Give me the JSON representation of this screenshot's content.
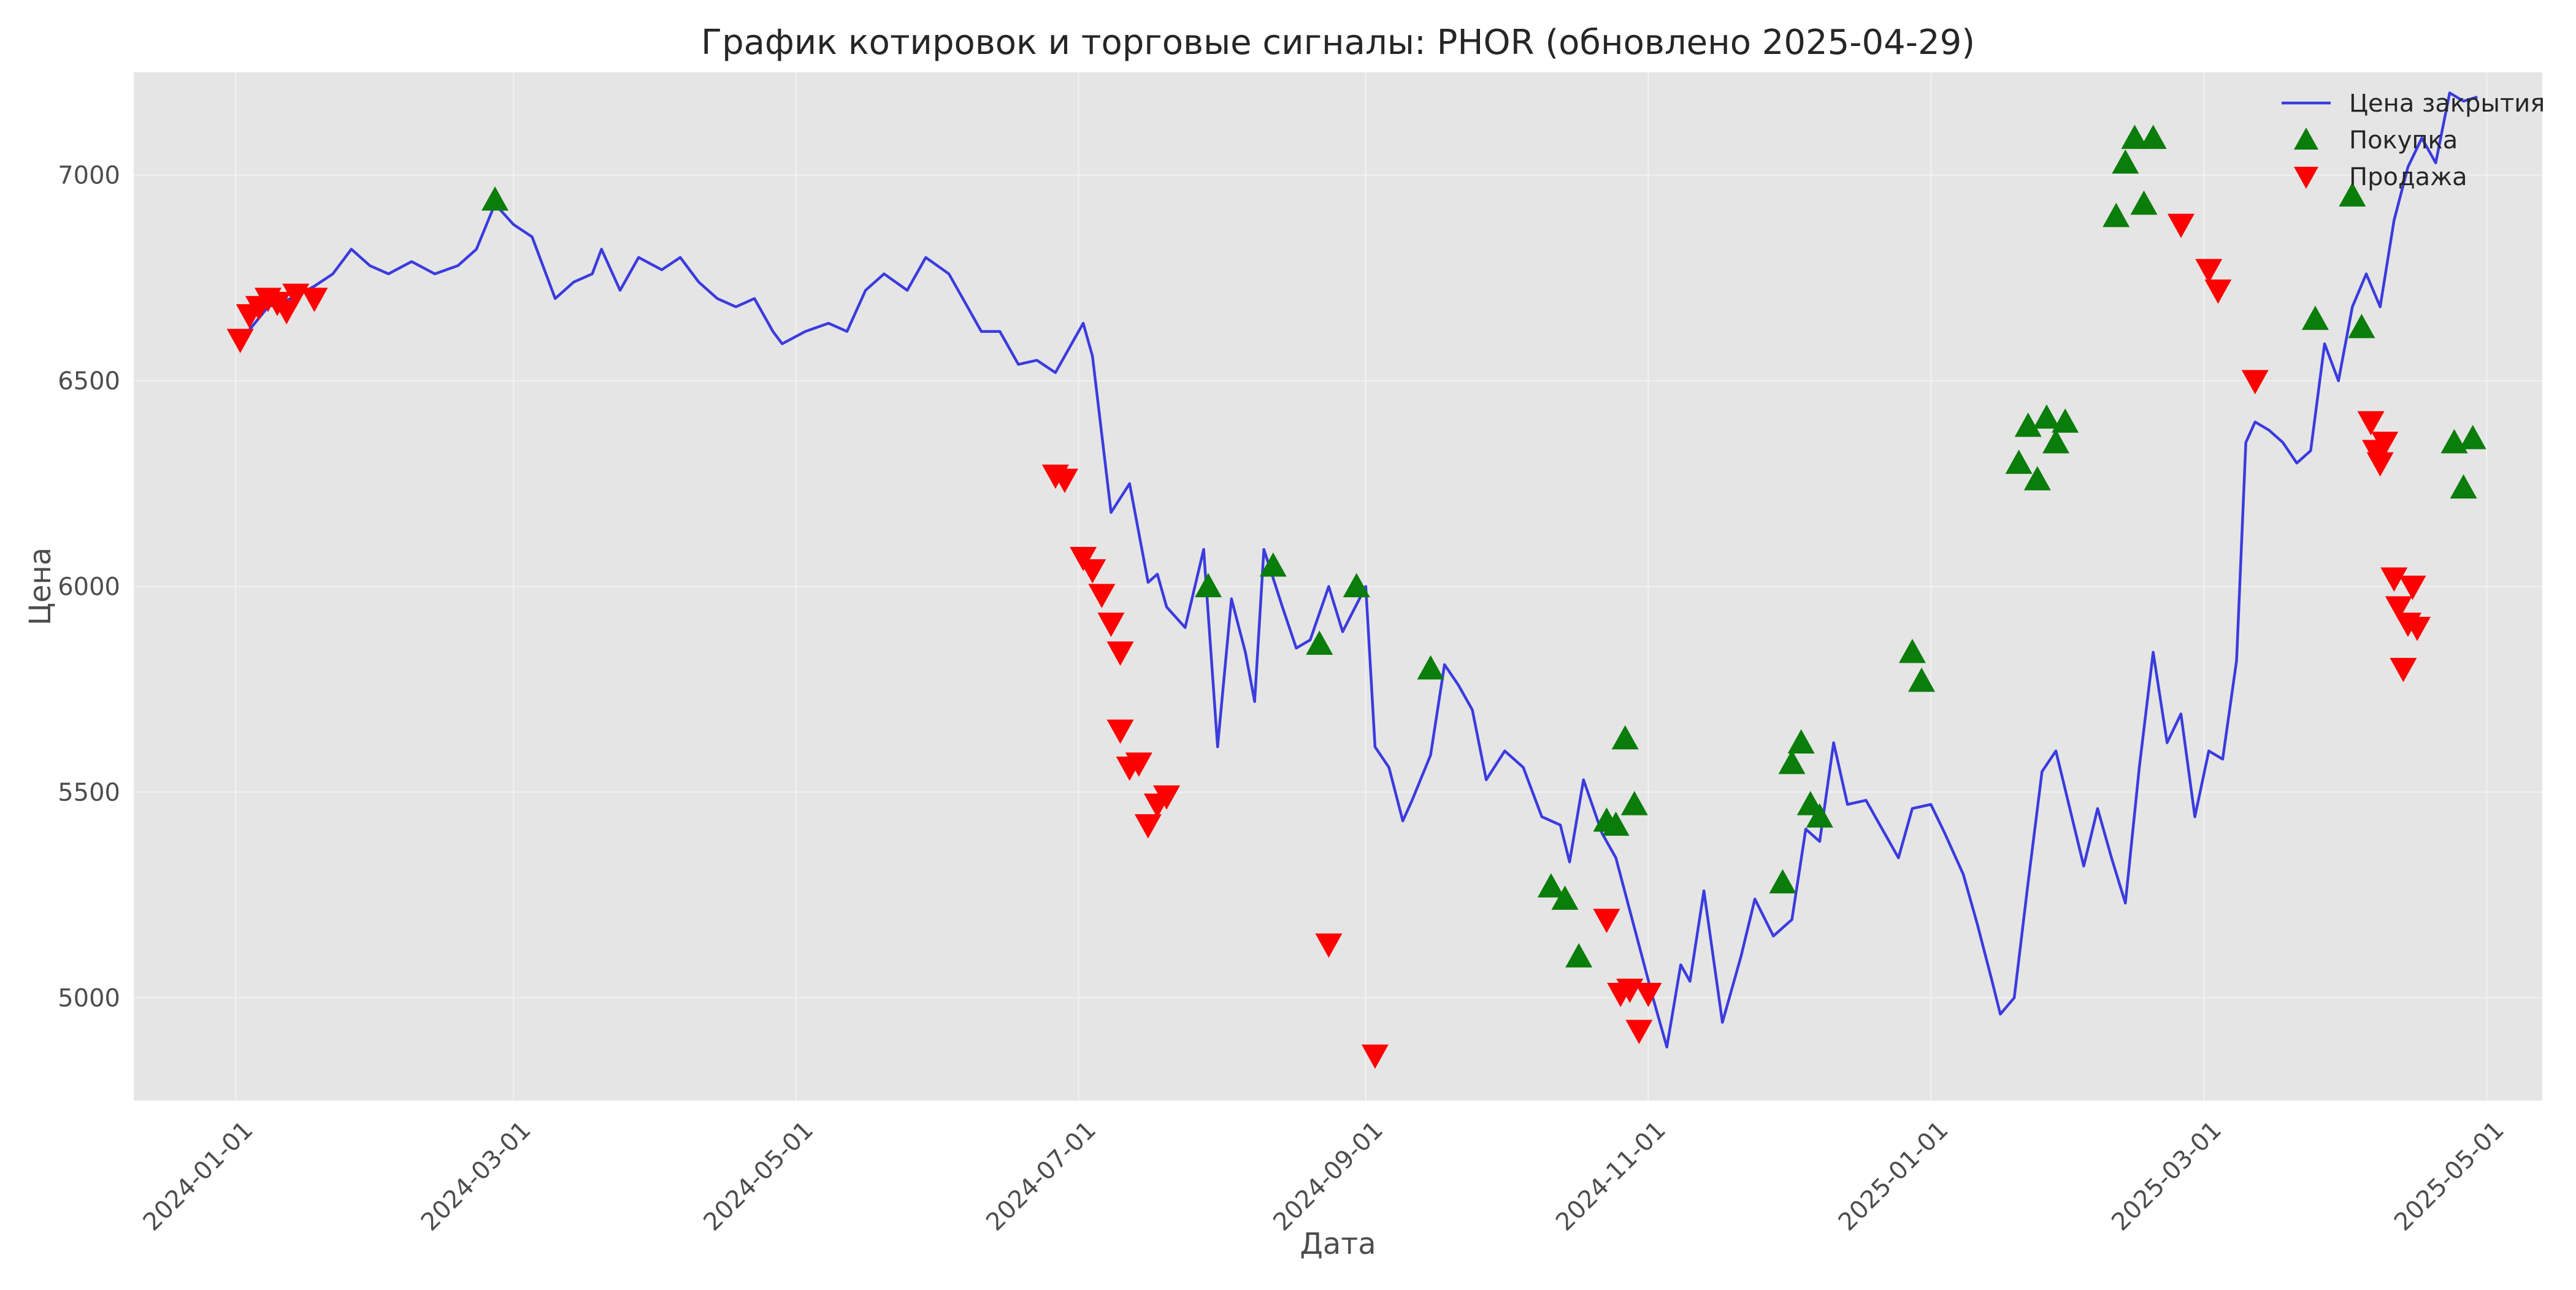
{
  "chart_data": {
    "type": "line",
    "title": "График котировок и торговые сигналы: PHOR (обновлено 2025-04-29)",
    "xlabel": "Дата",
    "ylabel": "Цена",
    "x_ticks": [
      "2024-01-01",
      "2024-03-01",
      "2024-05-01",
      "2024-07-01",
      "2024-09-01",
      "2024-11-01",
      "2025-01-01",
      "2025-03-01",
      "2025-05-01"
    ],
    "y_ticks": [
      5000,
      5500,
      6000,
      6500,
      7000
    ],
    "xlim": [
      "2023-12-10",
      "2025-05-13"
    ],
    "ylim": [
      4750,
      7250
    ],
    "grid": true,
    "legend_position": "top-right",
    "colors": {
      "plot_background": "#e5e5e5",
      "grid": "#f2f2f2",
      "line": "#3b3bdf",
      "buy": "#0a7d0a",
      "sell": "#ff0000"
    },
    "series": [
      {
        "name": "Цена закрытия",
        "kind": "line",
        "points": [
          [
            "2024-01-03",
            6610
          ],
          [
            "2024-01-08",
            6680
          ],
          [
            "2024-01-13",
            6700
          ],
          [
            "2024-01-18",
            6730
          ],
          [
            "2024-01-22",
            6760
          ],
          [
            "2024-01-26",
            6820
          ],
          [
            "2024-01-30",
            6780
          ],
          [
            "2024-02-03",
            6760
          ],
          [
            "2024-02-08",
            6790
          ],
          [
            "2024-02-13",
            6760
          ],
          [
            "2024-02-18",
            6780
          ],
          [
            "2024-02-22",
            6820
          ],
          [
            "2024-02-26",
            6930
          ],
          [
            "2024-03-01",
            6880
          ],
          [
            "2024-03-05",
            6850
          ],
          [
            "2024-03-10",
            6700
          ],
          [
            "2024-03-14",
            6740
          ],
          [
            "2024-03-18",
            6760
          ],
          [
            "2024-03-20",
            6820
          ],
          [
            "2024-03-24",
            6720
          ],
          [
            "2024-03-28",
            6800
          ],
          [
            "2024-04-02",
            6770
          ],
          [
            "2024-04-06",
            6800
          ],
          [
            "2024-04-10",
            6740
          ],
          [
            "2024-04-14",
            6700
          ],
          [
            "2024-04-18",
            6680
          ],
          [
            "2024-04-22",
            6700
          ],
          [
            "2024-04-26",
            6620
          ],
          [
            "2024-04-28",
            6590
          ],
          [
            "2024-05-03",
            6620
          ],
          [
            "2024-05-08",
            6640
          ],
          [
            "2024-05-12",
            6620
          ],
          [
            "2024-05-16",
            6720
          ],
          [
            "2024-05-20",
            6760
          ],
          [
            "2024-05-25",
            6720
          ],
          [
            "2024-05-29",
            6800
          ],
          [
            "2024-06-03",
            6760
          ],
          [
            "2024-06-06",
            6700
          ],
          [
            "2024-06-10",
            6620
          ],
          [
            "2024-06-14",
            6620
          ],
          [
            "2024-06-18",
            6540
          ],
          [
            "2024-06-22",
            6550
          ],
          [
            "2024-06-26",
            6520
          ],
          [
            "2024-06-30",
            6600
          ],
          [
            "2024-07-02",
            6640
          ],
          [
            "2024-07-04",
            6560
          ],
          [
            "2024-07-08",
            6180
          ],
          [
            "2024-07-12",
            6250
          ],
          [
            "2024-07-16",
            6010
          ],
          [
            "2024-07-18",
            6030
          ],
          [
            "2024-07-20",
            5950
          ],
          [
            "2024-07-24",
            5900
          ],
          [
            "2024-07-28",
            6090
          ],
          [
            "2024-07-31",
            5610
          ],
          [
            "2024-08-03",
            5970
          ],
          [
            "2024-08-06",
            5840
          ],
          [
            "2024-08-08",
            5720
          ],
          [
            "2024-08-10",
            6090
          ],
          [
            "2024-08-14",
            5950
          ],
          [
            "2024-08-17",
            5850
          ],
          [
            "2024-08-20",
            5870
          ],
          [
            "2024-08-24",
            6000
          ],
          [
            "2024-08-27",
            5890
          ],
          [
            "2024-09-01",
            6000
          ],
          [
            "2024-09-03",
            5610
          ],
          [
            "2024-09-06",
            5560
          ],
          [
            "2024-09-09",
            5430
          ],
          [
            "2024-09-11",
            5480
          ],
          [
            "2024-09-15",
            5590
          ],
          [
            "2024-09-18",
            5810
          ],
          [
            "2024-09-21",
            5760
          ],
          [
            "2024-09-24",
            5700
          ],
          [
            "2024-09-27",
            5530
          ],
          [
            "2024-10-01",
            5600
          ],
          [
            "2024-10-05",
            5560
          ],
          [
            "2024-10-09",
            5440
          ],
          [
            "2024-10-13",
            5420
          ],
          [
            "2024-10-15",
            5330
          ],
          [
            "2024-10-18",
            5530
          ],
          [
            "2024-10-22",
            5400
          ],
          [
            "2024-10-25",
            5340
          ],
          [
            "2024-10-29",
            5170
          ],
          [
            "2024-11-02",
            5000
          ],
          [
            "2024-11-05",
            4880
          ],
          [
            "2024-11-08",
            5080
          ],
          [
            "2024-11-10",
            5040
          ],
          [
            "2024-11-13",
            5260
          ],
          [
            "2024-11-17",
            4940
          ],
          [
            "2024-11-21",
            5100
          ],
          [
            "2024-11-24",
            5240
          ],
          [
            "2024-11-28",
            5150
          ],
          [
            "2024-12-02",
            5190
          ],
          [
            "2024-12-05",
            5410
          ],
          [
            "2024-12-08",
            5380
          ],
          [
            "2024-12-11",
            5620
          ],
          [
            "2024-12-14",
            5470
          ],
          [
            "2024-12-18",
            5480
          ],
          [
            "2024-12-21",
            5420
          ],
          [
            "2024-12-25",
            5340
          ],
          [
            "2024-12-28",
            5460
          ],
          [
            "2025-01-01",
            5470
          ],
          [
            "2025-01-04",
            5400
          ],
          [
            "2025-01-08",
            5300
          ],
          [
            "2025-01-11",
            5180
          ],
          [
            "2025-01-14",
            5050
          ],
          [
            "2025-01-16",
            4960
          ],
          [
            "2025-01-19",
            5000
          ],
          [
            "2025-01-22",
            5280
          ],
          [
            "2025-01-25",
            5550
          ],
          [
            "2025-01-28",
            5600
          ],
          [
            "2025-01-31",
            5460
          ],
          [
            "2025-02-03",
            5320
          ],
          [
            "2025-02-06",
            5460
          ],
          [
            "2025-02-09",
            5340
          ],
          [
            "2025-02-12",
            5230
          ],
          [
            "2025-02-15",
            5560
          ],
          [
            "2025-02-18",
            5840
          ],
          [
            "2025-02-21",
            5620
          ],
          [
            "2025-02-24",
            5690
          ],
          [
            "2025-02-27",
            5440
          ],
          [
            "2025-03-02",
            5600
          ],
          [
            "2025-03-05",
            5580
          ],
          [
            "2025-03-08",
            5820
          ],
          [
            "2025-03-10",
            6350
          ],
          [
            "2025-03-12",
            6400
          ],
          [
            "2025-03-15",
            6380
          ],
          [
            "2025-03-18",
            6350
          ],
          [
            "2025-03-21",
            6300
          ],
          [
            "2025-03-24",
            6330
          ],
          [
            "2025-03-27",
            6590
          ],
          [
            "2025-03-30",
            6500
          ],
          [
            "2025-04-02",
            6680
          ],
          [
            "2025-04-05",
            6760
          ],
          [
            "2025-04-08",
            6680
          ],
          [
            "2025-04-11",
            6890
          ],
          [
            "2025-04-14",
            7020
          ],
          [
            "2025-04-17",
            7090
          ],
          [
            "2025-04-20",
            7030
          ],
          [
            "2025-04-23",
            7200
          ],
          [
            "2025-04-26",
            7180
          ],
          [
            "2025-04-29",
            7190
          ]
        ]
      },
      {
        "name": "Покупка",
        "kind": "marker-up",
        "points": [
          [
            "2024-02-26",
            6940
          ],
          [
            "2024-07-29",
            6000
          ],
          [
            "2024-08-12",
            6050
          ],
          [
            "2024-08-22",
            5860
          ],
          [
            "2024-08-30",
            6000
          ],
          [
            "2024-09-15",
            5800
          ],
          [
            "2024-10-11",
            5270
          ],
          [
            "2024-10-14",
            5240
          ],
          [
            "2024-10-17",
            5100
          ],
          [
            "2024-10-23",
            5430
          ],
          [
            "2024-10-25",
            5420
          ],
          [
            "2024-10-27",
            5630
          ],
          [
            "2024-10-29",
            5470
          ],
          [
            "2024-11-30",
            5280
          ],
          [
            "2024-12-02",
            5570
          ],
          [
            "2024-12-04",
            5620
          ],
          [
            "2024-12-06",
            5470
          ],
          [
            "2024-12-08",
            5440
          ],
          [
            "2024-12-28",
            5840
          ],
          [
            "2024-12-30",
            5770
          ],
          [
            "2025-01-20",
            6300
          ],
          [
            "2025-01-22",
            6390
          ],
          [
            "2025-01-24",
            6260
          ],
          [
            "2025-01-26",
            6410
          ],
          [
            "2025-01-28",
            6350
          ],
          [
            "2025-01-30",
            6400
          ],
          [
            "2025-02-10",
            6900
          ],
          [
            "2025-02-12",
            7030
          ],
          [
            "2025-02-14",
            7090
          ],
          [
            "2025-02-16",
            6930
          ],
          [
            "2025-02-18",
            7090
          ],
          [
            "2025-03-25",
            6650
          ],
          [
            "2025-04-02",
            6950
          ],
          [
            "2025-04-04",
            6630
          ],
          [
            "2025-04-24",
            6350
          ],
          [
            "2025-04-26",
            6240
          ],
          [
            "2025-04-28",
            6360
          ]
        ]
      },
      {
        "name": "Продажа",
        "kind": "marker-down",
        "points": [
          [
            "2024-01-02",
            6600
          ],
          [
            "2024-01-04",
            6660
          ],
          [
            "2024-01-06",
            6680
          ],
          [
            "2024-01-08",
            6700
          ],
          [
            "2024-01-10",
            6690
          ],
          [
            "2024-01-12",
            6670
          ],
          [
            "2024-01-14",
            6710
          ],
          [
            "2024-01-18",
            6700
          ],
          [
            "2024-06-26",
            6270
          ],
          [
            "2024-06-28",
            6260
          ],
          [
            "2024-07-02",
            6070
          ],
          [
            "2024-07-04",
            6040
          ],
          [
            "2024-07-06",
            5980
          ],
          [
            "2024-07-08",
            5910
          ],
          [
            "2024-07-10",
            5840
          ],
          [
            "2024-07-10",
            5650
          ],
          [
            "2024-07-12",
            5560
          ],
          [
            "2024-07-14",
            5570
          ],
          [
            "2024-07-16",
            5420
          ],
          [
            "2024-07-18",
            5470
          ],
          [
            "2024-07-20",
            5490
          ],
          [
            "2024-08-24",
            5130
          ],
          [
            "2024-09-03",
            4860
          ],
          [
            "2024-10-23",
            5190
          ],
          [
            "2024-10-26",
            5010
          ],
          [
            "2024-10-28",
            5020
          ],
          [
            "2024-10-30",
            4920
          ],
          [
            "2024-11-01",
            5010
          ],
          [
            "2025-02-24",
            6880
          ],
          [
            "2025-03-02",
            6770
          ],
          [
            "2025-03-04",
            6720
          ],
          [
            "2025-03-12",
            6500
          ],
          [
            "2025-04-06",
            6400
          ],
          [
            "2025-04-07",
            6330
          ],
          [
            "2025-04-08",
            6300
          ],
          [
            "2025-04-09",
            6350
          ],
          [
            "2025-04-11",
            6020
          ],
          [
            "2025-04-12",
            5950
          ],
          [
            "2025-04-13",
            5800
          ],
          [
            "2025-04-14",
            5910
          ],
          [
            "2025-04-15",
            6000
          ],
          [
            "2025-04-16",
            5900
          ]
        ]
      }
    ]
  }
}
